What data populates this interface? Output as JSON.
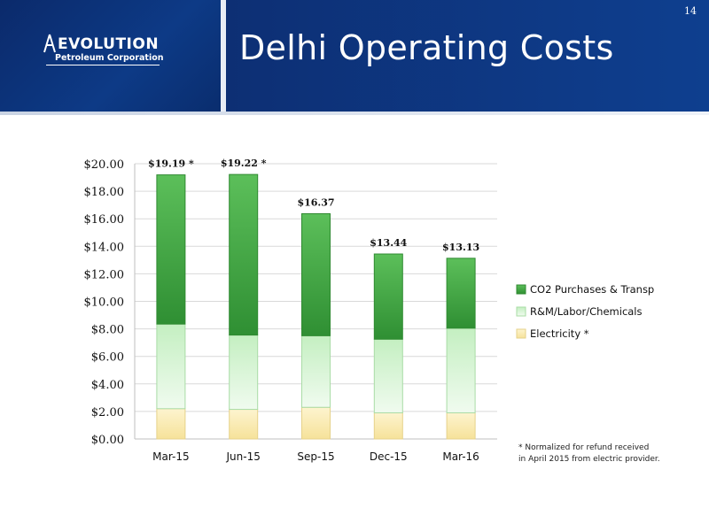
{
  "header": {
    "title": "Delhi Operating Costs",
    "page_number": "14",
    "logo": {
      "wordmark": "EVOLUTION",
      "subtitle": "Petroleum Corporation"
    }
  },
  "footnote": {
    "line1": "* Normalized for refund received",
    "line2": "in April 2015 from electric provider."
  },
  "chart_data": {
    "type": "bar",
    "stacked": true,
    "categories": [
      "Mar-15",
      "Jun-15",
      "Sep-15",
      "Dec-15",
      "Mar-16"
    ],
    "series": [
      {
        "name": "Electricity *",
        "values": [
          2.2,
          2.15,
          2.3,
          1.9,
          1.9
        ],
        "color": "#f8e9a8"
      },
      {
        "name": "R&M/Labor/Chemicals",
        "values": [
          6.15,
          5.4,
          5.2,
          5.35,
          6.15
        ],
        "color": "#d3f5d0"
      },
      {
        "name": "CO2 Purchases & Transp",
        "values": [
          10.84,
          11.67,
          8.87,
          6.19,
          5.08
        ],
        "color": "#46a845"
      }
    ],
    "totals": [
      19.19,
      19.22,
      16.37,
      13.44,
      13.13
    ],
    "total_labels": [
      "$19.19 *",
      "$19.22 *",
      "$16.37",
      "$13.44",
      "$13.13"
    ],
    "yticks": [
      "$0.00",
      "$2.00",
      "$4.00",
      "$6.00",
      "$8.00",
      "$10.00",
      "$12.00",
      "$14.00",
      "$16.00",
      "$18.00",
      "$20.00"
    ],
    "ylim": [
      0,
      20
    ],
    "ystep": 2,
    "grid": true,
    "legend": "right",
    "xlabel": "",
    "ylabel": "",
    "title": ""
  }
}
